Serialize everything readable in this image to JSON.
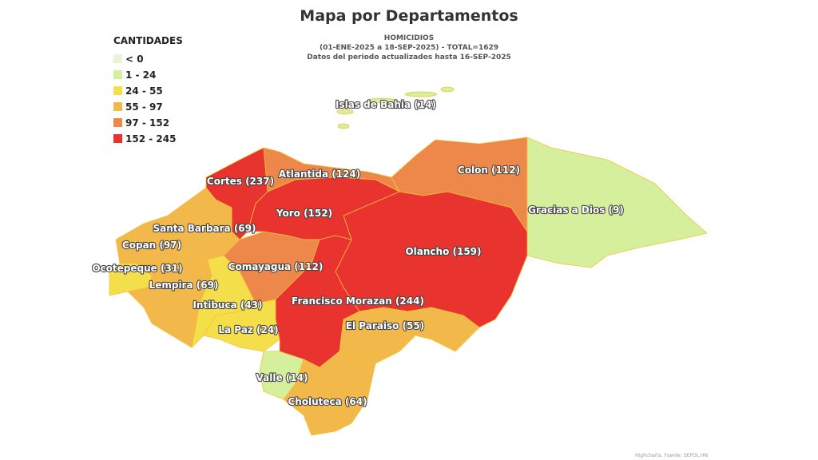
{
  "title": "Mapa por Departamentos",
  "subtitle": [
    "HOMICIDIOS",
    "(01-ENE-2025 a 18-SEP-2025) - TOTAL=1629",
    "Datos del periodo actualizados hasta 16-SEP-2025"
  ],
  "legend": {
    "title": "CANTIDADES",
    "items": [
      {
        "label": "< 0",
        "color": "#e6f4d8"
      },
      {
        "label": "1 - 24",
        "color": "#d6ef9c"
      },
      {
        "label": "24 - 55",
        "color": "#f4df4a"
      },
      {
        "label": "55 - 97",
        "color": "#f3b84a"
      },
      {
        "label": "97 - 152",
        "color": "#ee884a"
      },
      {
        "label": "152 - 245",
        "color": "#e8332f"
      }
    ]
  },
  "regions": [
    {
      "label": "Cortes (237)",
      "color": "#e8332f"
    },
    {
      "label": "Atlantida (124)",
      "color": "#ee884a"
    },
    {
      "label": "Colon (112)",
      "color": "#ee884a"
    },
    {
      "label": "Gracias a Dios (9)",
      "color": "#d6ef9c"
    },
    {
      "label": "Olancho (159)",
      "color": "#e8332f"
    },
    {
      "label": "Yoro (152)",
      "color": "#e8332f"
    },
    {
      "label": "Santa Barbara (69)",
      "color": "#f3b84a"
    },
    {
      "label": "Copan (97)",
      "color": "#f3b84a"
    },
    {
      "label": "Ocotepeque (31)",
      "color": "#f4df4a"
    },
    {
      "label": "Lempira (69)",
      "color": "#f3b84a"
    },
    {
      "label": "Intibuca (43)",
      "color": "#f4df4a"
    },
    {
      "label": "La Paz (24)",
      "color": "#f4df4a"
    },
    {
      "label": "Comayagua (112)",
      "color": "#ee884a"
    },
    {
      "label": "Francisco Morazan (244)",
      "color": "#e8332f"
    },
    {
      "label": "El Paraiso (55)",
      "color": "#f3b84a"
    },
    {
      "label": "Valle (14)",
      "color": "#d6ef9c"
    },
    {
      "label": "Choluteca (64)",
      "color": "#f3b84a"
    },
    {
      "label": "Islas de Bahia (14)",
      "color": "#d6ef9c"
    }
  ],
  "credits": "Highcharts. Fuente: SEPOL.HN"
}
